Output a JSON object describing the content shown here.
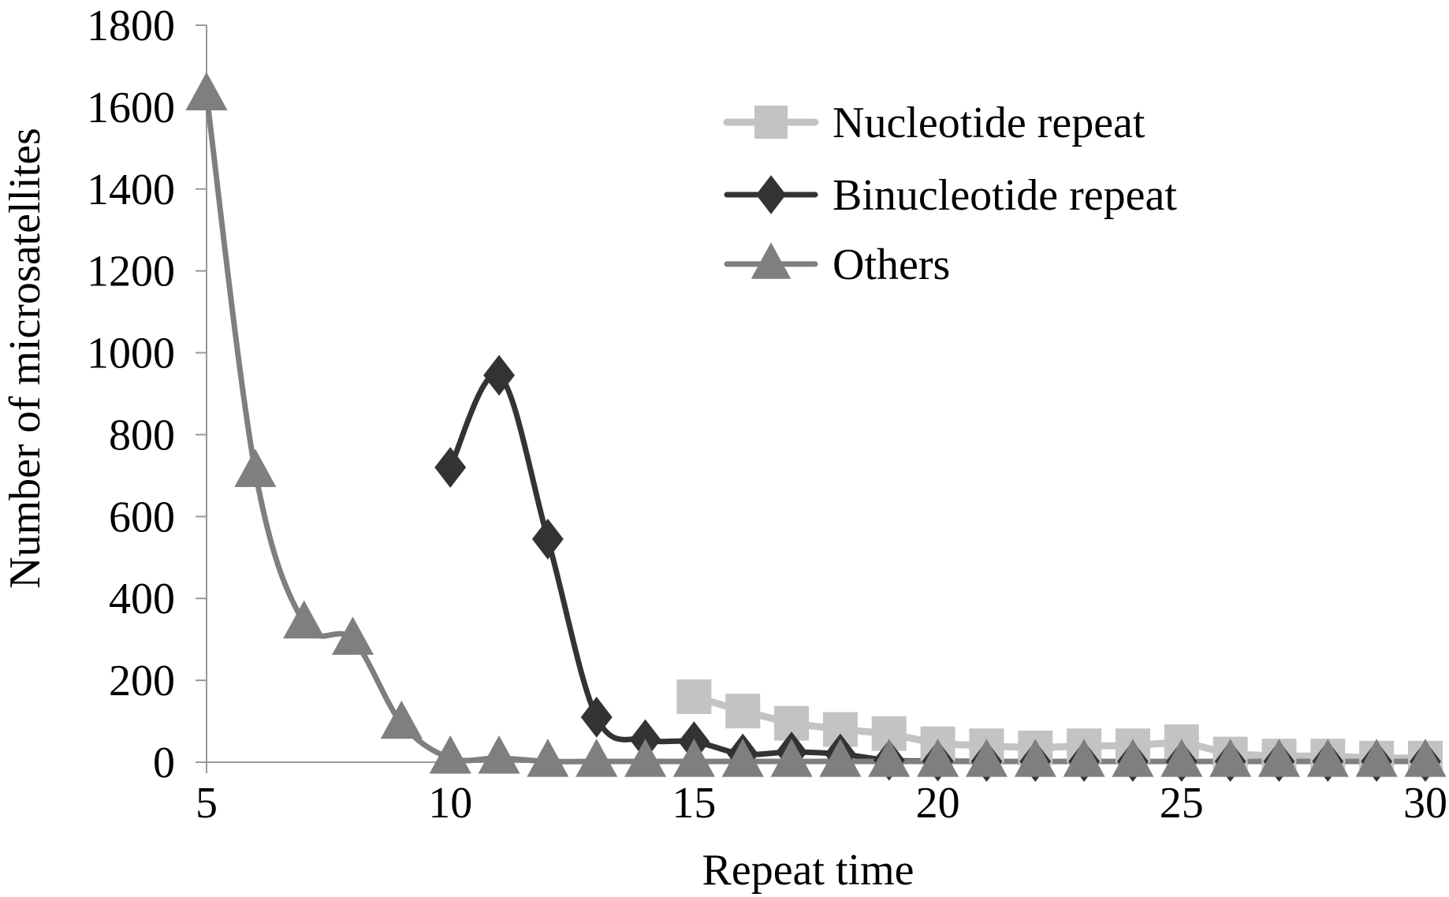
{
  "chart_data": {
    "type": "line",
    "title": "",
    "xlabel": "Repeat time",
    "ylabel": "Number of microsatellites",
    "xlim": [
      5,
      30
    ],
    "ylim": [
      0,
      1800
    ],
    "xticks": [
      5,
      10,
      15,
      20,
      25,
      30
    ],
    "yticks": [
      0,
      200,
      400,
      600,
      800,
      1000,
      1200,
      1400,
      1600,
      1800
    ],
    "grid": false,
    "legend_position": "top-right",
    "series": [
      {
        "name": "Nucleotide repeat",
        "marker": "square",
        "color": "#c3c3c3",
        "smooth": false,
        "x": [
          15,
          16,
          17,
          18,
          19,
          20,
          21,
          22,
          23,
          24,
          25,
          26,
          27,
          28,
          29,
          30
        ],
        "y": [
          160,
          125,
          95,
          80,
          70,
          45,
          40,
          35,
          40,
          40,
          50,
          20,
          15,
          15,
          10,
          10
        ]
      },
      {
        "name": "Binucleotide repeat",
        "marker": "diamond",
        "color": "#333333",
        "smooth": true,
        "x": [
          10,
          11,
          12,
          13,
          14,
          15,
          16,
          17,
          18,
          19,
          20,
          21,
          22,
          23,
          24,
          25,
          26,
          27,
          28,
          29,
          30
        ],
        "y": [
          720,
          945,
          545,
          110,
          55,
          50,
          20,
          25,
          20,
          5,
          3,
          2,
          2,
          2,
          2,
          2,
          2,
          2,
          2,
          2,
          2
        ]
      },
      {
        "name": "Others",
        "marker": "triangle",
        "color": "#7f7f7f",
        "smooth": true,
        "x": [
          5,
          6,
          7,
          8,
          9,
          10,
          11,
          12,
          13,
          14,
          15,
          16,
          17,
          18,
          19,
          20,
          21,
          22,
          23,
          24,
          25,
          26,
          27,
          28,
          29,
          30
        ],
        "y": [
          1630,
          710,
          340,
          300,
          95,
          10,
          10,
          2,
          2,
          2,
          2,
          2,
          2,
          2,
          2,
          2,
          2,
          2,
          2,
          2,
          2,
          2,
          2,
          2,
          2,
          2
        ]
      }
    ]
  }
}
